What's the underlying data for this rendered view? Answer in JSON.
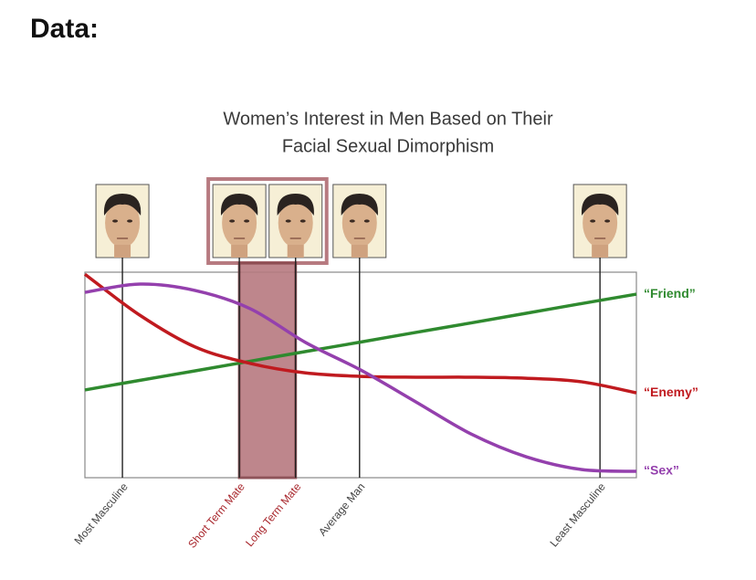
{
  "header": "Data:",
  "chart_data": {
    "type": "line",
    "title": [
      "Women’s Interest in Men Based on Their",
      "Facial Sexual Dimorphism"
    ],
    "x": [
      0,
      10,
      20,
      30,
      40,
      50,
      60,
      70,
      80,
      90,
      100
    ],
    "xlim": [
      0,
      100
    ],
    "ylim": [
      0,
      100
    ],
    "series": [
      {
        "name": "“Friend”",
        "color": "#2f8a2f",
        "values": [
          42.7,
          47.4,
          52,
          56.7,
          61.4,
          66,
          70.7,
          75.3,
          80,
          84.7,
          89.3
        ]
      },
      {
        "name": "“Enemy”",
        "color": "#c01a1f",
        "values": [
          99,
          79,
          63.6,
          55.6,
          51,
          49.3,
          48.9,
          48.9,
          48.4,
          46.7,
          41.3
        ]
      },
      {
        "name": "“Sex”",
        "color": "#9440ad",
        "values": [
          90.2,
          94.2,
          91.1,
          82.2,
          65.8,
          52.4,
          36.9,
          21.3,
          10.2,
          4,
          3.1
        ]
      }
    ],
    "markers": [
      {
        "label": "Most Masculine",
        "x": 6.8,
        "color": "#444444"
      },
      {
        "label": "Short Term Mate",
        "x": 28,
        "color": "#a8262c"
      },
      {
        "label": "Long Term Mate",
        "x": 38.2,
        "color": "#a8262c"
      },
      {
        "label": "Average Man",
        "x": 49.8,
        "color": "#444444"
      },
      {
        "label": "Least Masculine",
        "x": 93.4,
        "color": "#444444"
      }
    ],
    "highlight": {
      "x": [
        28,
        38.2
      ],
      "color": "#b77a80"
    }
  }
}
